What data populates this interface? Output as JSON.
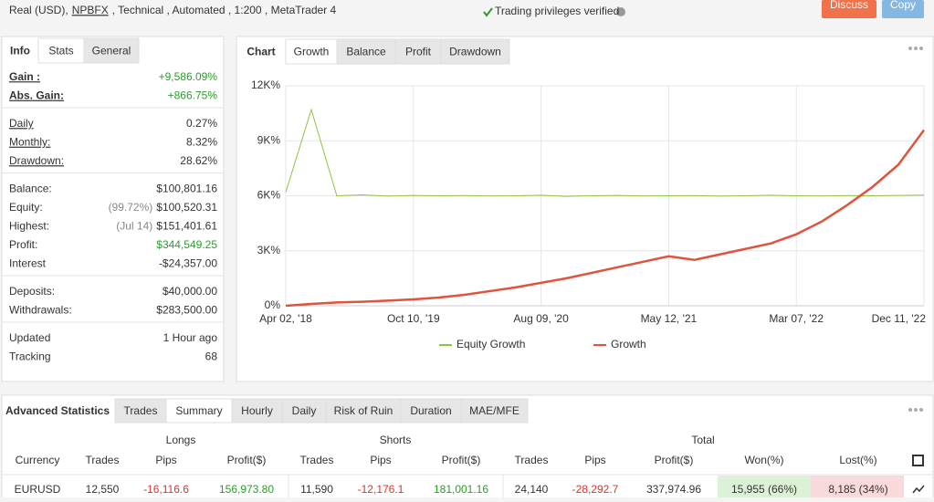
{
  "header": {
    "account": [
      "Real (USD),",
      "NPBFX",
      ", Technical , Automated , 1:200 , MetaTrader 4"
    ],
    "verified": "Trading privileges verified",
    "buttons": [
      "Discuss",
      "Copy"
    ]
  },
  "info_panel": {
    "tabs": [
      "Info",
      "Stats",
      "General"
    ],
    "groups": [
      [
        {
          "label": "Gain :",
          "value": "+9,586.09%"
        },
        {
          "label": "Abs. Gain:",
          "value": "+866.75%"
        }
      ],
      [
        {
          "label": "Daily",
          "value": "0.27%"
        },
        {
          "label": "Monthly:",
          "value": "8.32%"
        },
        {
          "label": "Drawdown:",
          "value": "28.62%"
        }
      ],
      [
        {
          "label": "Balance:",
          "value": "$100,801.16"
        },
        {
          "label": "Equity:",
          "note": "(99.72%)",
          "value": "$100,520.31"
        },
        {
          "label": "Highest:",
          "note": "(Jul 14)",
          "value": "$151,401.61"
        },
        {
          "label": "Profit:",
          "value": "$344,549.25"
        },
        {
          "label": "Interest",
          "value": "-$24,357.00"
        }
      ],
      [
        {
          "label": "Deposits:",
          "value": "$40,000.00"
        },
        {
          "label": "Withdrawals:",
          "value": "$283,500.00"
        }
      ],
      [
        {
          "label": "Updated",
          "value": "1 Hour ago"
        },
        {
          "label": "Tracking",
          "value": "68"
        }
      ]
    ]
  },
  "chart_panel": {
    "tabs": [
      "Chart",
      "Growth",
      "Balance",
      "Profit",
      "Drawdown"
    ]
  },
  "chart_data": {
    "type": "line",
    "categories": [
      "Apr 02, '18",
      null,
      null,
      null,
      null,
      "Oct 10, '19",
      null,
      null,
      null,
      null,
      "Aug 09, '20",
      null,
      null,
      null,
      null,
      "May 12, '21",
      null,
      null,
      null,
      null,
      "Mar 07, '22",
      null,
      null,
      null,
      null,
      "Dec 11, '22"
    ],
    "series": [
      {
        "name": "Equity Growth",
        "color": "#8cc63f",
        "values": [
          6200,
          10700,
          6000,
          6050,
          5980,
          6020,
          6000,
          6010,
          5990,
          6000,
          6030,
          5970,
          6000,
          6020,
          5990,
          6000,
          6010,
          5980,
          6000,
          6030,
          6000,
          5990,
          6010,
          6000,
          6020,
          6040
        ]
      },
      {
        "name": "Growth",
        "color": "#e0533d",
        "values": [
          0,
          100,
          180,
          220,
          280,
          350,
          450,
          600,
          800,
          1000,
          1250,
          1500,
          1800,
          2100,
          2400,
          2700,
          2500,
          2800,
          3100,
          3400,
          3900,
          4600,
          5500,
          6500,
          7700,
          9586
        ]
      }
    ],
    "ylim": [
      0,
      12000
    ],
    "yticks": [
      {
        "value": 0,
        "label": "0%"
      },
      {
        "value": 3000,
        "label": "3K%"
      },
      {
        "value": 6000,
        "label": "6K%"
      },
      {
        "value": 9000,
        "label": "9K%"
      },
      {
        "value": 12000,
        "label": "12K%"
      }
    ],
    "grid": true
  },
  "stats_panel": {
    "tabs": [
      "Advanced Statistics",
      "Trades",
      "Summary",
      "Hourly",
      "Daily",
      "Risk of Ruin",
      "Duration",
      "MAE/MFE"
    ],
    "groups": [
      "Longs",
      "Shorts",
      "Total"
    ],
    "columns": [
      "Currency",
      "Trades",
      "Pips",
      "Profit($)",
      "Trades",
      "Pips",
      "Profit($)",
      "Trades",
      "Pips",
      "Profit($)",
      "Won(%)",
      "Lost(%)"
    ],
    "rows": [
      [
        "EURUSD",
        "12,550",
        "-16,116.6",
        "156,973.80",
        "11,590",
        "-12,176.1",
        "181,001.16",
        "24,140",
        "-28,292.7",
        "337,974.96",
        "15,955 (66%)",
        "8,185 (34%)"
      ]
    ]
  }
}
